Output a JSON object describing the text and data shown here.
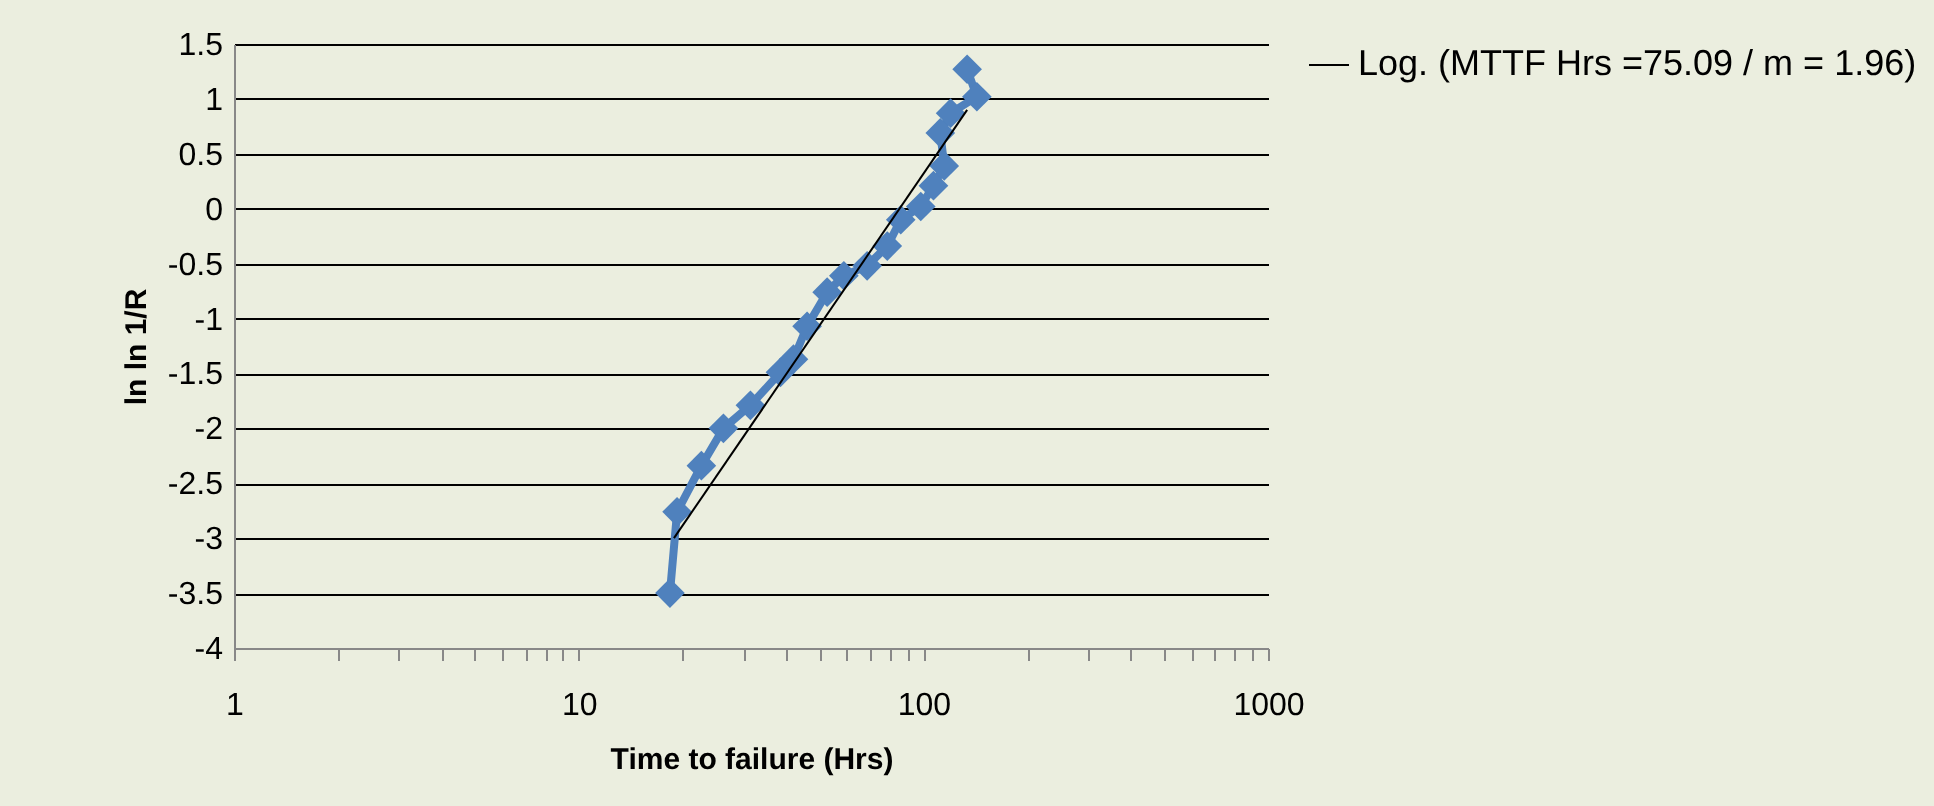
{
  "chart_data": {
    "type": "line",
    "xlabel": "Time to failure (Hrs)",
    "ylabel": "ln ln 1/R",
    "log": "x",
    "xlim": [
      1,
      1000
    ],
    "ylim": [
      -4,
      1.5
    ],
    "xticks": [
      1,
      {
        "value": 2,
        "label": null
      },
      {
        "value": 3,
        "label": null
      },
      {
        "value": 4,
        "label": null
      },
      {
        "value": 5,
        "label": null
      },
      {
        "value": 6,
        "label": null
      },
      {
        "value": 7,
        "label": null
      },
      {
        "value": 8,
        "label": null
      },
      {
        "value": 9,
        "label": null
      },
      10,
      {
        "value": 20,
        "label": null
      },
      {
        "value": 30,
        "label": null
      },
      {
        "value": 40,
        "label": null
      },
      {
        "value": 50,
        "label": null
      },
      {
        "value": 60,
        "label": null
      },
      {
        "value": 70,
        "label": null
      },
      {
        "value": 80,
        "label": null
      },
      {
        "value": 90,
        "label": null
      },
      100,
      {
        "value": 200,
        "label": null
      },
      {
        "value": 300,
        "label": null
      },
      {
        "value": 400,
        "label": null
      },
      {
        "value": 500,
        "label": null
      },
      {
        "value": 600,
        "label": null
      },
      {
        "value": 700,
        "label": null
      },
      {
        "value": 800,
        "label": null
      },
      {
        "value": 900,
        "label": null
      },
      1000
    ],
    "yticks": [
      -4,
      -3.5,
      -3,
      -2.5,
      -2,
      -1.5,
      -1,
      -0.5,
      0,
      0.5,
      1,
      1.5
    ],
    "grid": "y",
    "legend": "right",
    "marker": "diamond",
    "series": [
      {
        "color": "#4f81bd",
        "x": [
          18.4,
          19.3,
          22.7,
          26.3,
          31.5,
          38.5,
          42,
          46,
          52.6,
          58.8,
          68.7,
          78.6,
          86,
          98.3,
          107,
          115,
          112,
          120,
          143,
          134
        ],
        "values": [
          -3.5,
          -2.76,
          -2.34,
          -2.0,
          -1.79,
          -1.49,
          -1.37,
          -1.07,
          -0.76,
          -0.61,
          -0.52,
          -0.34,
          -0.1,
          0.02,
          0.21,
          0.39,
          0.69,
          0.87,
          1.02,
          1.27
        ]
      },
      {
        "name": "Log. (MTTF Hrs =75.09 / m = 1.96)",
        "color": "#000000",
        "marker": "none",
        "x": [
          18.9,
          134
        ],
        "values": [
          -3.0,
          0.9
        ]
      }
    ]
  }
}
